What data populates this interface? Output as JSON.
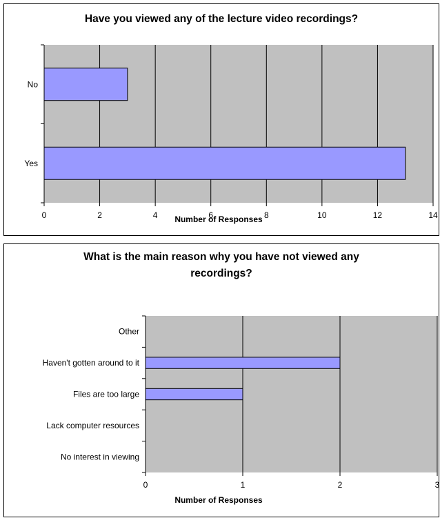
{
  "chart_data": [
    {
      "type": "bar",
      "orientation": "horizontal",
      "title": "Have you viewed any of the lecture video recordings?",
      "xlabel": "Number of Responses",
      "ylabel": "",
      "categories": [
        "No",
        "Yes"
      ],
      "values": [
        3,
        13
      ],
      "xlim": [
        0,
        14
      ],
      "xticks": [
        "0",
        "2",
        "4",
        "6",
        "8",
        "10",
        "12",
        "14"
      ],
      "grid": true,
      "legend": "none"
    },
    {
      "type": "bar",
      "orientation": "horizontal",
      "title_lines": [
        "What is the main reason why you have not viewed any",
        "recordings?"
      ],
      "xlabel": "Number of Responses",
      "ylabel": "",
      "categories": [
        "Other",
        "Haven't gotten around to it",
        "Files are too large",
        "Lack computer resources",
        "No interest in viewing"
      ],
      "values": [
        0,
        2,
        1,
        0,
        0
      ],
      "xlim": [
        0,
        3
      ],
      "xticks": [
        "0",
        "1",
        "2",
        "3"
      ],
      "grid": true,
      "legend": "none"
    }
  ],
  "colors": {
    "plot_bg": "#c0c0c0",
    "bar_fill": "#9999ff",
    "bar_stroke": "#000000",
    "grid": "#000000"
  }
}
